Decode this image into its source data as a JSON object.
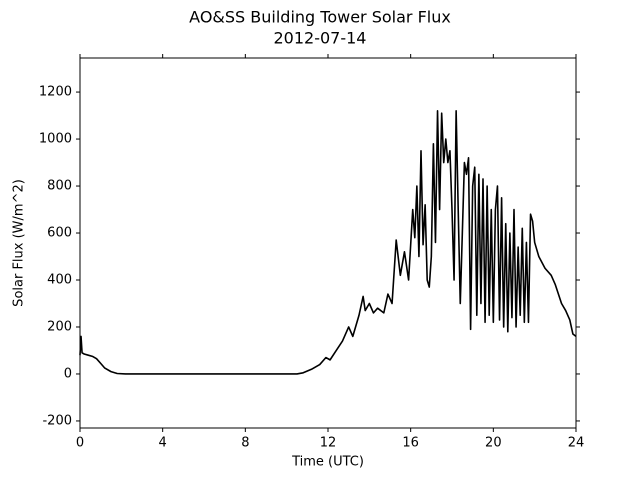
{
  "chart_data": {
    "type": "line",
    "title": "AO&SS Building Tower Solar Flux",
    "subtitle": "2012-07-14",
    "xlabel": "Time (UTC)",
    "ylabel": "Solar Flux (W/m^2)",
    "xlim": [
      0,
      24
    ],
    "xticks": [
      0,
      4,
      8,
      12,
      16,
      20,
      24
    ],
    "ylim": [
      -230,
      1345
    ],
    "yticks": [
      -200,
      0,
      200,
      400,
      600,
      800,
      1000,
      1200
    ],
    "series": [
      {
        "color": "#000000",
        "x": [
          0,
          0.05,
          0.1,
          0.2,
          0.4,
          0.6,
          0.8,
          1.0,
          1.2,
          1.5,
          1.8,
          2.2,
          10.5,
          10.8,
          11.2,
          11.6,
          11.9,
          12.1,
          12.4,
          12.7,
          13.0,
          13.2,
          13.5,
          13.7,
          13.8,
          14.0,
          14.2,
          14.4,
          14.7,
          14.9,
          15.1,
          15.3,
          15.5,
          15.7,
          15.9,
          16.1,
          16.2,
          16.3,
          16.4,
          16.5,
          16.6,
          16.7,
          16.8,
          16.9,
          17.0,
          17.1,
          17.2,
          17.3,
          17.4,
          17.5,
          17.6,
          17.7,
          17.8,
          17.9,
          18.0,
          18.1,
          18.2,
          18.3,
          18.4,
          18.5,
          18.6,
          18.7,
          18.8,
          18.9,
          19.0,
          19.1,
          19.2,
          19.3,
          19.4,
          19.5,
          19.6,
          19.7,
          19.8,
          19.9,
          20.0,
          20.1,
          20.2,
          20.3,
          20.4,
          20.5,
          20.6,
          20.7,
          20.8,
          20.9,
          21.0,
          21.1,
          21.2,
          21.3,
          21.4,
          21.5,
          21.6,
          21.7,
          21.8,
          21.9,
          22.0,
          22.2,
          22.5,
          22.8,
          23.0,
          23.3,
          23.5,
          23.7,
          23.85,
          24
        ],
        "values": [
          80,
          160,
          90,
          85,
          80,
          75,
          65,
          45,
          25,
          10,
          2,
          0,
          0,
          5,
          20,
          40,
          70,
          60,
          100,
          140,
          200,
          160,
          250,
          330,
          270,
          300,
          260,
          280,
          260,
          340,
          300,
          570,
          420,
          520,
          400,
          700,
          580,
          800,
          500,
          950,
          550,
          720,
          400,
          370,
          500,
          980,
          560,
          1120,
          700,
          1110,
          900,
          1000,
          900,
          950,
          700,
          400,
          1120,
          700,
          300,
          600,
          900,
          850,
          920,
          190,
          800,
          880,
          250,
          850,
          300,
          830,
          220,
          800,
          250,
          700,
          220,
          700,
          800,
          230,
          750,
          200,
          640,
          180,
          600,
          240,
          700,
          200,
          540,
          250,
          620,
          220,
          560,
          220,
          680,
          650,
          560,
          500,
          450,
          420,
          380,
          300,
          270,
          230,
          170,
          160
        ]
      }
    ]
  }
}
